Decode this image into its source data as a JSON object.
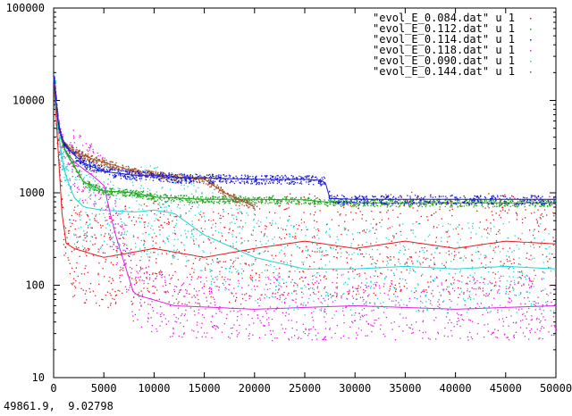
{
  "status_readout": "49861.9,  9.02798",
  "chart_data": {
    "type": "scatter",
    "title": "",
    "xlabel": "",
    "ylabel": "",
    "xlim": [
      0,
      50000
    ],
    "ylim": [
      10,
      100000
    ],
    "yscale": "log",
    "grid": false,
    "legend_position": "top-right",
    "x_ticks": [
      0,
      5000,
      10000,
      15000,
      20000,
      25000,
      30000,
      35000,
      40000,
      45000,
      50000
    ],
    "x_tick_labels": [
      "0",
      "5000",
      "10000",
      "15000",
      "20000",
      "25000",
      "30000",
      "35000",
      "40000",
      "45000",
      "50000"
    ],
    "y_ticks": [
      10,
      100,
      1000,
      10000,
      100000
    ],
    "y_tick_labels": [
      "10",
      "100",
      "1000",
      "10000",
      "100000"
    ],
    "series": [
      {
        "name": "\"evol_E_0.084.dat\" u 1",
        "color": "#e41a1c",
        "x": [
          0,
          1000,
          2000,
          5000,
          10000,
          15000,
          20000,
          25000,
          30000,
          35000,
          40000,
          45000,
          50000
        ],
        "y": [
          18000,
          300,
          250,
          200,
          250,
          200,
          250,
          300,
          250,
          300,
          250,
          300,
          280
        ]
      },
      {
        "name": "\"evol_E_0.112.dat\" u 1",
        "color": "#1aa81a",
        "x": [
          0,
          500,
          1000,
          2000,
          3000,
          5000,
          8000,
          10000,
          15000,
          20000,
          25000,
          27000,
          30000,
          40000,
          50000
        ],
        "y": [
          18000,
          5000,
          3000,
          2000,
          1300,
          1050,
          1000,
          900,
          850,
          850,
          840,
          800,
          780,
          780,
          780
        ]
      },
      {
        "name": "\"evol_E_0.114.dat\" u 1",
        "color": "#1a1acd",
        "x": [
          0,
          500,
          1000,
          2000,
          3000,
          5000,
          8000,
          10000,
          12000,
          15000,
          20000,
          25000,
          27000,
          27500,
          30000,
          40000,
          50000
        ],
        "y": [
          18000,
          5000,
          3400,
          2600,
          2100,
          1700,
          1550,
          1550,
          1450,
          1450,
          1400,
          1400,
          1350,
          870,
          850,
          850,
          850
        ]
      },
      {
        "name": "\"evol_E_0.118.dat\" u 1",
        "color": "#e020e0",
        "x": [
          0,
          500,
          1000,
          2000,
          3000,
          4000,
          5000,
          6000,
          8000,
          12000,
          20000,
          30000,
          40000,
          50000
        ],
        "y": [
          18000,
          5000,
          3000,
          2200,
          1800,
          1500,
          1200,
          400,
          80,
          60,
          55,
          60,
          55,
          60
        ]
      },
      {
        "name": "\"evol_E_0.090.dat\" u 1",
        "color": "#20d4d4",
        "x": [
          0,
          500,
          1000,
          2000,
          3000,
          5000,
          8000,
          10000,
          12000,
          15000,
          20000,
          25000,
          30000,
          35000,
          40000,
          45000,
          50000
        ],
        "y": [
          18000,
          4000,
          1800,
          900,
          700,
          650,
          620,
          650,
          600,
          350,
          200,
          150,
          150,
          160,
          150,
          160,
          150
        ]
      },
      {
        "name": "\"evol_E_0.144.dat\" u 1",
        "color": "#a0522d",
        "x": [
          0,
          500,
          1000,
          2000,
          4000,
          6000,
          8000,
          10000,
          12000,
          15000,
          17000,
          19000,
          20000
        ],
        "y": [
          18000,
          5000,
          3500,
          2800,
          2300,
          2000,
          1700,
          1600,
          1500,
          1400,
          1000,
          800,
          700
        ]
      }
    ]
  }
}
